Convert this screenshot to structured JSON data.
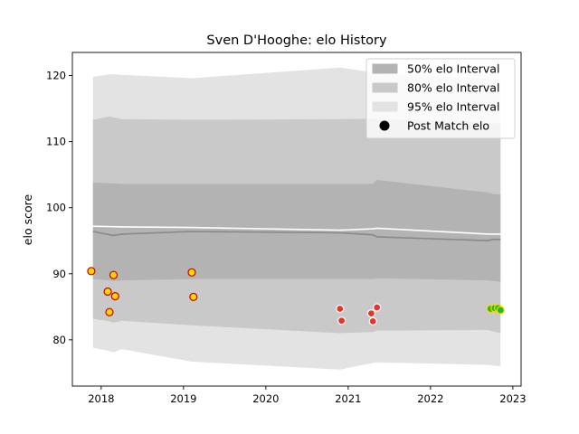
{
  "chart_data": {
    "type": "line",
    "title": "Sven D'Hooghe: elo History",
    "xlabel": "",
    "ylabel": "elo score",
    "xlim": [
      2017.65,
      2023.1
    ],
    "ylim": [
      73,
      123.5
    ],
    "xticks": [
      2018,
      2019,
      2020,
      2021,
      2022,
      2023
    ],
    "yticks": [
      80,
      90,
      100,
      110,
      120
    ],
    "grid": false,
    "legend_position": "top-right",
    "legend": [
      {
        "label": "50% elo Interval",
        "kind": "band",
        "color": "#b3b3b3"
      },
      {
        "label": "80% elo Interval",
        "kind": "band",
        "color": "#c9c9c9"
      },
      {
        "label": "95% elo Interval",
        "kind": "band",
        "color": "#e3e3e3"
      },
      {
        "label": "Post Match elo",
        "kind": "marker",
        "color": "#000000"
      }
    ],
    "bands": {
      "x": [
        2017.9,
        2018.1,
        2018.15,
        2018.25,
        2019.1,
        2020.9,
        2021.3,
        2021.35,
        2022.7,
        2022.75,
        2022.85
      ],
      "band95_upper": [
        119.8,
        120.2,
        120.2,
        120.1,
        119.6,
        121.2,
        120.5,
        120.3,
        119.5,
        119.4,
        119.3
      ],
      "band95_lower": [
        78.8,
        78.3,
        78.1,
        78.6,
        76.7,
        75.5,
        76.5,
        76.6,
        76.2,
        76.1,
        76.0
      ],
      "band80_upper": [
        113.3,
        113.8,
        113.7,
        113.4,
        113.3,
        113.4,
        113.5,
        113.4,
        112.9,
        112.8,
        112.7
      ],
      "band80_lower": [
        83.2,
        82.8,
        82.6,
        82.9,
        82.2,
        81.0,
        81.2,
        81.4,
        81.5,
        81.3,
        81.0
      ],
      "band50_upper": [
        103.8,
        103.7,
        103.7,
        103.6,
        103.6,
        103.6,
        103.6,
        104.2,
        102.3,
        102.1,
        102.0
      ],
      "band50_lower": [
        89.2,
        89.0,
        88.9,
        89.0,
        89.2,
        89.2,
        89.2,
        89.3,
        89.0,
        88.9,
        88.8
      ]
    },
    "mean_line": {
      "x": [
        2017.9,
        2018.25,
        2019.1,
        2020.9,
        2021.3,
        2021.35,
        2022.7,
        2022.85
      ],
      "y": [
        97.2,
        97.1,
        97.0,
        96.6,
        96.8,
        96.9,
        96.0,
        96.0
      ]
    },
    "median_line": {
      "x": [
        2017.9,
        2018.15,
        2018.25,
        2019.1,
        2020.9,
        2021.3,
        2021.35,
        2022.7,
        2022.75,
        2022.85
      ],
      "y": [
        96.4,
        95.8,
        96.0,
        96.4,
        96.2,
        95.9,
        95.6,
        95.0,
        95.2,
        95.2
      ]
    },
    "points": [
      {
        "x": 2017.88,
        "y": 90.4,
        "fill": "#ffd700",
        "edge": "#cc0000"
      },
      {
        "x": 2018.08,
        "y": 87.3,
        "fill": "#ffd700",
        "edge": "#cc0000"
      },
      {
        "x": 2018.1,
        "y": 84.2,
        "fill": "#ffd700",
        "edge": "#cc0000"
      },
      {
        "x": 2018.15,
        "y": 89.8,
        "fill": "#ffd700",
        "edge": "#cc0000"
      },
      {
        "x": 2018.17,
        "y": 86.6,
        "fill": "#ffd700",
        "edge": "#cc0000"
      },
      {
        "x": 2019.1,
        "y": 90.2,
        "fill": "#ffd700",
        "edge": "#cc0000"
      },
      {
        "x": 2019.12,
        "y": 86.5,
        "fill": "#ffd700",
        "edge": "#cc0000"
      },
      {
        "x": 2020.9,
        "y": 84.7,
        "fill": "#e8352a",
        "edge": "#ffffff"
      },
      {
        "x": 2020.92,
        "y": 82.9,
        "fill": "#e8352a",
        "edge": "#ffffff"
      },
      {
        "x": 2021.28,
        "y": 84.0,
        "fill": "#e8352a",
        "edge": "#ffffff"
      },
      {
        "x": 2021.3,
        "y": 82.8,
        "fill": "#e8352a",
        "edge": "#ffffff"
      },
      {
        "x": 2021.35,
        "y": 84.9,
        "fill": "#e8352a",
        "edge": "#ffffff"
      },
      {
        "x": 2022.73,
        "y": 84.7,
        "fill": "#22bb22",
        "edge": "#ffd700"
      },
      {
        "x": 2022.78,
        "y": 84.8,
        "fill": "#22bb22",
        "edge": "#ffd700"
      },
      {
        "x": 2022.82,
        "y": 84.8,
        "fill": "#22bb22",
        "edge": "#ffd700"
      },
      {
        "x": 2022.85,
        "y": 84.5,
        "fill": "#22bb22",
        "edge": "#ffd700"
      }
    ],
    "colors": {
      "band50": "#b3b3b3",
      "band80": "#c9c9c9",
      "band95": "#e3e3e3",
      "mean": "#ffffff",
      "median": "#888888"
    }
  }
}
